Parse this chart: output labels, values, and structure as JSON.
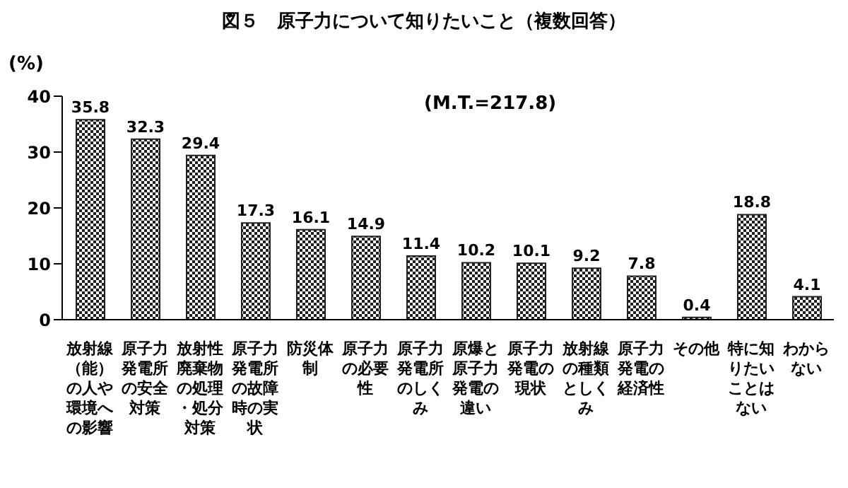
{
  "chart_data": {
    "type": "bar",
    "title": "図５　原子力について知りたいこと（複数回答）",
    "ylabel": "(%)",
    "annotations": [
      "(M.T.=217.8)"
    ],
    "categories": [
      "放射線（能）の人や環境への影響",
      "原子力発電所の安全対策",
      "放射性廃棄物の処理・処分対策",
      "原子力発電所の故障時の実状",
      "防災体制",
      "原子力の必要性",
      "原子力発電所のしくみ",
      "原爆と原子力発電の違い",
      "原子力発電の現状",
      "放射線の種類としくみ",
      "原子力発電の経済性",
      "その他",
      "特に知りたいことはない",
      "わからない"
    ],
    "values": [
      35.8,
      32.3,
      29.4,
      17.3,
      16.1,
      14.9,
      11.4,
      10.2,
      10.1,
      9.2,
      7.8,
      0.4,
      18.8,
      4.1
    ],
    "color": "#222222",
    "data_labels": true,
    "ylim": [
      0,
      40
    ],
    "yticks": [
      0,
      10,
      20,
      30,
      40
    ],
    "grid": false,
    "legend": false
  }
}
